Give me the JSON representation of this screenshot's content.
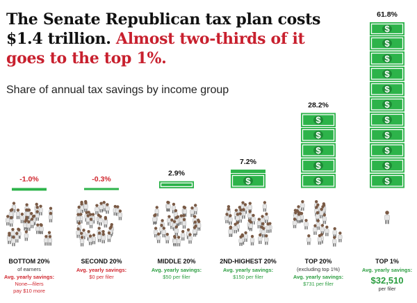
{
  "headline": {
    "part1": "The Senate Republican tax plan costs $1.4 trillion.",
    "part2": "Almost two-thirds of it goes to the top 1%.",
    "accent_color": "#c8202e"
  },
  "subtitle": "Share of annual tax savings by income group",
  "colors": {
    "bill_green": "#2db34a",
    "bill_dark": "#1e8a36",
    "positive_text": "#2a9d3f",
    "negative_text": "#d0262e",
    "people_color": "#7a5a45"
  },
  "chart_data": {
    "type": "bar",
    "title": "Share of annual tax savings by income group",
    "unit": "%",
    "categories": [
      {
        "name": "BOTTOM 20%",
        "sub": "of earners",
        "value": -1.0,
        "label": "-1.0%",
        "savings_title": "Avg. yearly savings:",
        "savings_lines": [
          "None—filers",
          "pay $10 more"
        ],
        "savings_tone": "negative"
      },
      {
        "name": "SECOND 20%",
        "sub": "",
        "value": -0.3,
        "label": "-0.3%",
        "savings_title": "Avg. yearly savings:",
        "savings_lines": [
          "$0 per filer"
        ],
        "savings_tone": "negative"
      },
      {
        "name": "MIDDLE 20%",
        "sub": "",
        "value": 2.9,
        "label": "2.9%",
        "savings_title": "Avg. yearly savings:",
        "savings_lines": [
          "$50 per filer"
        ],
        "savings_tone": "positive"
      },
      {
        "name": "2ND-HIGHEST 20%",
        "sub": "",
        "value": 7.2,
        "label": "7.2%",
        "savings_title": "Avg. yearly savings:",
        "savings_lines": [
          "$150 per filer"
        ],
        "savings_tone": "positive"
      },
      {
        "name": "TOP 20%",
        "sub": "(excluding top 1%)",
        "value": 28.2,
        "label": "28.2%",
        "savings_title": "Avg. yearly savings:",
        "savings_lines": [
          "$731 per filer"
        ],
        "savings_tone": "positive"
      },
      {
        "name": "TOP 1%",
        "sub": "",
        "value": 61.8,
        "label": "61.8%",
        "savings_title": "Avg. yearly savings:",
        "savings_big": "$32,510",
        "savings_lines": [
          "per filer"
        ],
        "savings_tone": "positive"
      }
    ]
  }
}
